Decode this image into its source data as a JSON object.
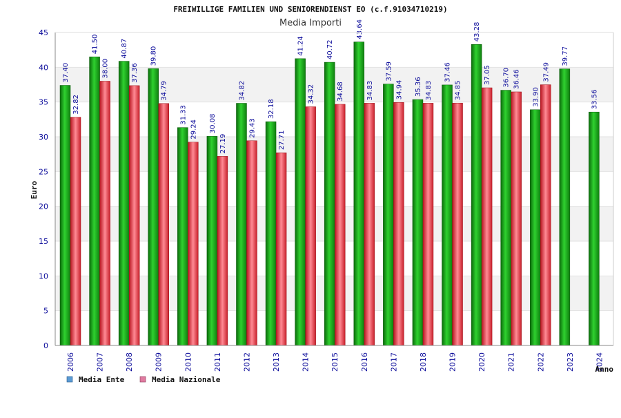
{
  "chart_data": {
    "type": "bar",
    "title": "FREIWILLIGE FAMILIEN UND SENIORENDIENST EO (c.f.91034710219)",
    "subtitle": "Media Importi",
    "ylabel": "Euro",
    "xlabel": "Anno",
    "ylim": [
      0,
      45
    ],
    "yticks": [
      0,
      5,
      10,
      15,
      20,
      25,
      30,
      35,
      40,
      45
    ],
    "grid": "horizontal bands",
    "legend_position": "bottom-left",
    "categories": [
      "2006",
      "2007",
      "2008",
      "2009",
      "2010",
      "2011",
      "2012",
      "2013",
      "2014",
      "2015",
      "2016",
      "2017",
      "2018",
      "2019",
      "2020",
      "2021",
      "2022",
      "2023",
      "2024"
    ],
    "series": [
      {
        "name": "Media Ente",
        "legend_color": "#5b9bd5",
        "bar_color": "#1aa61a",
        "values": [
          37.4,
          41.5,
          40.87,
          39.8,
          31.33,
          30.08,
          34.82,
          32.18,
          41.24,
          40.72,
          43.64,
          37.59,
          35.36,
          37.46,
          43.28,
          36.7,
          33.9,
          39.77,
          33.56
        ],
        "labels": [
          "37.40",
          "41.50",
          "40.87",
          "39.80",
          "31.33",
          "30.08",
          "34.82",
          "32.18",
          "41.24",
          "40.72",
          "43.64",
          "37.59",
          "35.36",
          "37.46",
          "43.28",
          "36.70",
          "33.90",
          "39.77",
          "33.56"
        ]
      },
      {
        "name": "Media Nazionale",
        "legend_color": "#e07ba0",
        "bar_color": "#e0303a",
        "values": [
          32.82,
          38.0,
          37.36,
          34.79,
          29.24,
          27.19,
          29.43,
          27.71,
          34.32,
          34.68,
          34.83,
          34.94,
          34.83,
          34.85,
          37.05,
          36.46,
          37.49,
          null,
          null
        ],
        "labels": [
          "32.82",
          "38.00",
          "37.36",
          "34.79",
          "29.24",
          "27.19",
          "29.43",
          "27.71",
          "34.32",
          "34.68",
          "34.83",
          "34.94",
          "34.83",
          "34.85",
          "37.05",
          "36.46",
          "37.49",
          null,
          null
        ]
      }
    ]
  }
}
